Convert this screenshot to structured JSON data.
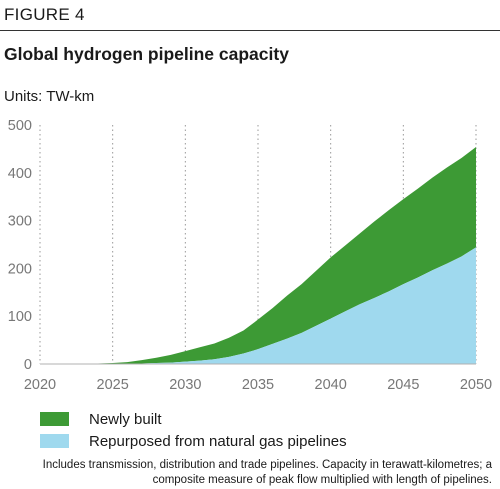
{
  "figure_label": "FIGURE 4",
  "title": "Global hydrogen pipeline capacity",
  "units": "Units: TW-km",
  "footnote": "Includes transmission, distribution and trade pipelines. Capacity in terawatt-kilometres; a composite measure of peak flow multiplied with length of pipelines.",
  "colors": {
    "newly_built": "#3d9a35",
    "repurposed": "#9fd9ee",
    "axis_text": "#777777",
    "grid": "#999999"
  },
  "chart_data": {
    "type": "area",
    "stacked": true,
    "title": "Global hydrogen pipeline capacity",
    "xlabel": "",
    "ylabel": "",
    "xlim": [
      2020,
      2050
    ],
    "ylim": [
      0,
      500
    ],
    "x_ticks": [
      2020,
      2025,
      2030,
      2035,
      2040,
      2045,
      2050
    ],
    "y_ticks": [
      0,
      100,
      200,
      300,
      400,
      500
    ],
    "grid": "vertical dotted",
    "legend": "bottom",
    "x": [
      2020,
      2022,
      2024,
      2025,
      2026,
      2027,
      2028,
      2029,
      2030,
      2031,
      2032,
      2033,
      2034,
      2035,
      2036,
      2037,
      2038,
      2039,
      2040,
      2041,
      2042,
      2043,
      2044,
      2045,
      2046,
      2047,
      2048,
      2049,
      2050
    ],
    "series": [
      {
        "name": "Repurposed from natural gas pipelines",
        "color": "#9fd9ee",
        "values": [
          0,
          0,
          0,
          0,
          0,
          1,
          2,
          3,
          5,
          7,
          10,
          15,
          22,
          31,
          42,
          53,
          65,
          80,
          95,
          110,
          125,
          138,
          152,
          167,
          181,
          196,
          210,
          225,
          244
        ]
      },
      {
        "name": "Newly built",
        "color": "#3d9a35",
        "values": [
          0,
          0,
          1,
          2,
          4,
          7,
          11,
          16,
          22,
          28,
          33,
          40,
          48,
          62,
          75,
          90,
          102,
          115,
          128,
          138,
          148,
          160,
          170,
          178,
          186,
          194,
          201,
          206,
          210
        ]
      }
    ]
  }
}
